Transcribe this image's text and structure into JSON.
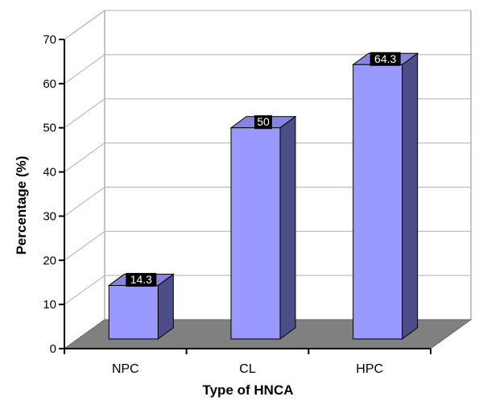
{
  "chart_data": {
    "type": "bar",
    "title": "",
    "xlabel": "Type of HNCA",
    "ylabel": "Percentage (%)",
    "categories": [
      "NPC",
      "CL",
      "HPC"
    ],
    "values": [
      14.3,
      50,
      64.3
    ],
    "data_labels": [
      "14.3",
      "50",
      "64.3"
    ],
    "ylim": [
      0,
      70
    ],
    "yticks": [
      "0",
      "10",
      "20",
      "30",
      "40",
      "50",
      "60",
      "70"
    ],
    "grid": true,
    "legend": "none",
    "style": "3d",
    "colors": {
      "bar_front": "#9999ff",
      "bar_top": "#8585e0",
      "bar_side": "#4d4d87",
      "floor": "#808080",
      "label_box": "#000000"
    }
  }
}
